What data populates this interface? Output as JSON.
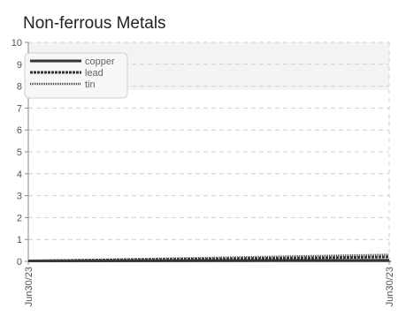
{
  "chart_data": {
    "type": "line",
    "title": "Non-ferrous Metals",
    "xlabel": "",
    "ylabel": "",
    "x": [
      "Jun30/23",
      "Jun30/23"
    ],
    "ylim": [
      0,
      10
    ],
    "y_ticks": [
      0,
      1,
      2,
      3,
      4,
      5,
      6,
      7,
      8,
      9,
      10
    ],
    "x_tick_labels": [
      "Jun30/23",
      "Jun30/23"
    ],
    "grid": true,
    "legend_position": "top-left",
    "series": [
      {
        "name": "copper",
        "values": [
          0.02,
          0.05
        ],
        "style": "solid",
        "color": "#333333"
      },
      {
        "name": "lead",
        "values": [
          0.02,
          0.2
        ],
        "style": "dashed",
        "color": "#333333"
      },
      {
        "name": "tin",
        "values": [
          0.02,
          0.3
        ],
        "style": "dotted",
        "color": "#444444"
      }
    ]
  }
}
